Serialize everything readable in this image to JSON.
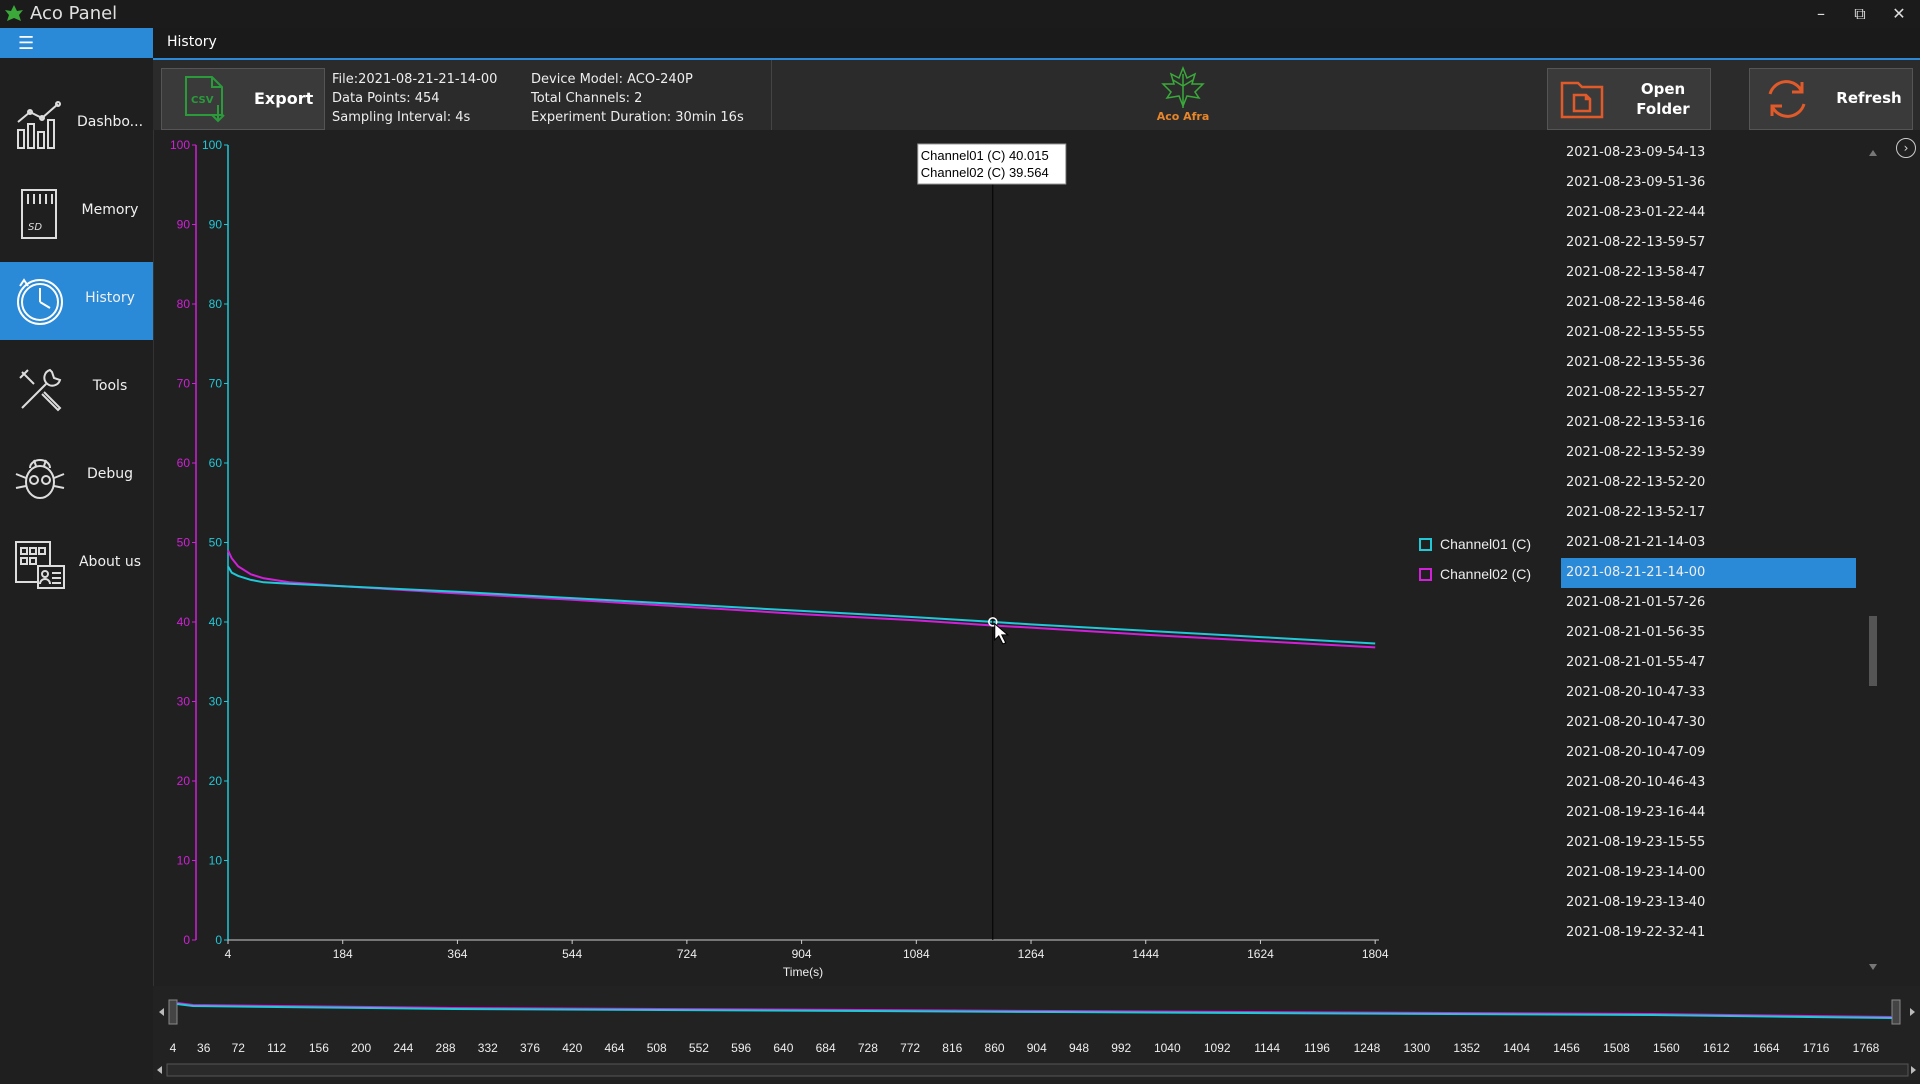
{
  "app": {
    "title": "Aco Panel",
    "accent": "#2a8ad8"
  },
  "sidebar": {
    "items": [
      {
        "label": "Dashbo...",
        "icon": "dashboard-chart-icon",
        "active": false
      },
      {
        "label": "Memory",
        "icon": "sd-card-icon",
        "active": false
      },
      {
        "label": "History",
        "icon": "clock-icon",
        "active": true
      },
      {
        "label": "Tools",
        "icon": "tools-icon",
        "active": false
      },
      {
        "label": "Debug",
        "icon": "bug-icon",
        "active": false
      },
      {
        "label": "About us",
        "icon": "about-icon",
        "active": false
      }
    ]
  },
  "tab": {
    "label": "History"
  },
  "toolbar": {
    "export_label": "Export",
    "csv_label": "CSV",
    "file_info": {
      "file": "File:2021-08-21-21-14-00",
      "data_points": "Data Points: 454",
      "sampling": "Sampling Interval: 4s",
      "device": "Device Model: ACO-240P",
      "channels": "Total Channels: 2",
      "duration": "Experiment Duration: 30min 16s"
    },
    "logo_text": "Aco Afra",
    "open_folder_line1": "Open",
    "open_folder_line2": "Folder",
    "refresh_label": "Refresh"
  },
  "chart_data": {
    "type": "line",
    "xlabel": "Time(s)",
    "ylabel": "",
    "xlim": [
      4,
      1810
    ],
    "ylim": [
      0,
      100
    ],
    "x_ticks": [
      4,
      184,
      364,
      544,
      724,
      904,
      1084,
      1264,
      1444,
      1624,
      1804
    ],
    "y_ticks": [
      0,
      10,
      20,
      30,
      40,
      50,
      60,
      70,
      80,
      90,
      100
    ],
    "series": [
      {
        "name": "Channel01 (C)",
        "color": "#20c8d8",
        "x": [
          4,
          10,
          20,
          40,
          60,
          100,
          184,
          364,
          544,
          724,
          904,
          1084,
          1204,
          1264,
          1444,
          1624,
          1804
        ],
        "y": [
          47,
          46.2,
          45.8,
          45.3,
          45.0,
          44.8,
          44.5,
          43.8,
          43.0,
          42.2,
          41.4,
          40.6,
          40.015,
          39.7,
          38.9,
          38.1,
          37.3
        ]
      },
      {
        "name": "Channel02 (C)",
        "color": "#d020d8",
        "x": [
          4,
          10,
          20,
          40,
          60,
          100,
          184,
          364,
          544,
          724,
          904,
          1084,
          1204,
          1264,
          1444,
          1624,
          1804
        ],
        "y": [
          49,
          48,
          47,
          46,
          45.5,
          45.0,
          44.5,
          43.6,
          42.8,
          41.9,
          41.0,
          40.2,
          39.564,
          39.3,
          38.4,
          37.6,
          36.8
        ]
      }
    ],
    "cursor_x": 1204,
    "tooltip": [
      "Channel01 (C) 40.015",
      "Channel02 (C) 39.564"
    ],
    "legend_position": "right"
  },
  "overview": {
    "ticks": [
      "4",
      "36",
      "72",
      "112",
      "156",
      "200",
      "244",
      "288",
      "332",
      "376",
      "420",
      "464",
      "508",
      "552",
      "596",
      "640",
      "684",
      "728",
      "772",
      "816",
      "860",
      "904",
      "948",
      "992",
      "1040",
      "1092",
      "1144",
      "1196",
      "1248",
      "1300",
      "1352",
      "1404",
      "1456",
      "1508",
      "1560",
      "1612",
      "1664",
      "1716",
      "1768"
    ]
  },
  "files": [
    "2021-08-23-09-54-13",
    "2021-08-23-09-51-36",
    "2021-08-23-01-22-44",
    "2021-08-22-13-59-57",
    "2021-08-22-13-58-47",
    "2021-08-22-13-58-46",
    "2021-08-22-13-55-55",
    "2021-08-22-13-55-36",
    "2021-08-22-13-55-27",
    "2021-08-22-13-53-16",
    "2021-08-22-13-52-39",
    "2021-08-22-13-52-20",
    "2021-08-22-13-52-17",
    "2021-08-21-21-14-03",
    "2021-08-21-21-14-00",
    "2021-08-21-01-57-26",
    "2021-08-21-01-56-35",
    "2021-08-21-01-55-47",
    "2021-08-20-10-47-33",
    "2021-08-20-10-47-30",
    "2021-08-20-10-47-09",
    "2021-08-20-10-46-43",
    "2021-08-19-23-16-44",
    "2021-08-19-23-15-55",
    "2021-08-19-23-14-00",
    "2021-08-19-23-13-40",
    "2021-08-19-22-32-41"
  ],
  "selected_file": "2021-08-21-21-14-00"
}
